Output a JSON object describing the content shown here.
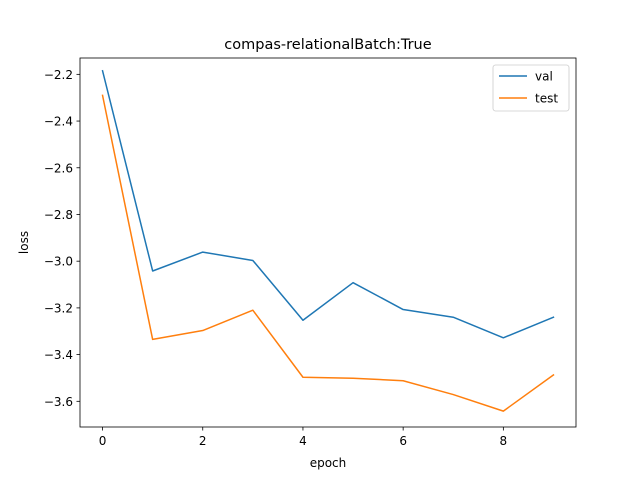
{
  "chart_data": {
    "type": "line",
    "title": "compas-relationalBatch:True",
    "xlabel": "epoch",
    "ylabel": "loss",
    "xlim": [
      -0.45,
      9.45
    ],
    "ylim": [
      -3.71,
      -2.13
    ],
    "xticks": [
      0,
      2,
      4,
      6,
      8
    ],
    "xtick_labels": [
      "0",
      "2",
      "4",
      "6",
      "8"
    ],
    "yticks": [
      -2.2,
      -2.4,
      -2.6,
      -2.8,
      -3.0,
      -3.2,
      -3.4,
      -3.6
    ],
    "ytick_labels": [
      "−2.2",
      "−2.4",
      "−2.6",
      "−2.8",
      "−3.0",
      "−3.2",
      "−3.4",
      "−3.6"
    ],
    "grid": false,
    "legend_position": "top-right",
    "x": [
      0,
      1,
      2,
      3,
      4,
      5,
      6,
      7,
      8,
      9
    ],
    "series": [
      {
        "name": "val",
        "color": "#1f77b4",
        "values": [
          -2.185,
          -3.042,
          -2.961,
          -2.997,
          -3.253,
          -3.092,
          -3.207,
          -3.24,
          -3.328,
          -3.24
        ]
      },
      {
        "name": "test",
        "color": "#ff7f0e",
        "values": [
          -2.29,
          -3.335,
          -3.297,
          -3.21,
          -3.497,
          -3.501,
          -3.512,
          -3.571,
          -3.642,
          -3.487
        ]
      }
    ]
  }
}
